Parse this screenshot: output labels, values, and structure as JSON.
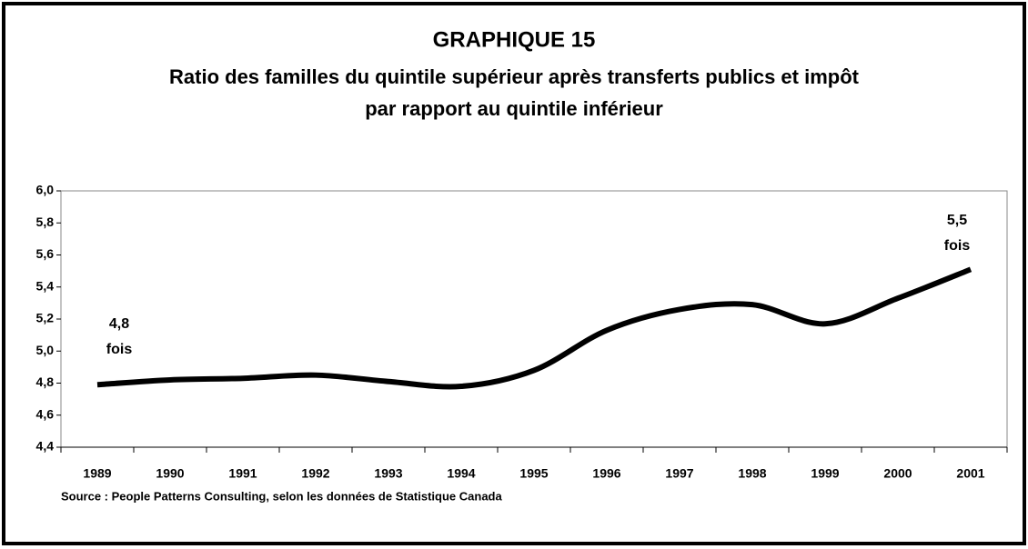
{
  "chart_data": {
    "type": "line",
    "title": "GRAPHIQUE 15",
    "subtitle": [
      "Ratio des familles du quintile supérieur après transferts publics et impôt",
      "par rapport au quintile inférieur"
    ],
    "categories": [
      "1989",
      "1990",
      "1991",
      "1992",
      "1993",
      "1994",
      "1995",
      "1996",
      "1997",
      "1998",
      "1999",
      "2000",
      "2001"
    ],
    "series": [
      {
        "color": "#000000",
        "values": [
          4.79,
          4.82,
          4.83,
          4.85,
          4.81,
          4.78,
          4.88,
          5.13,
          5.26,
          5.29,
          5.17,
          5.33,
          5.51
        ]
      }
    ],
    "ylim": [
      4.4,
      6.0
    ],
    "yticks": [
      {
        "value": 4.4,
        "label": "4,4"
      },
      {
        "value": 4.6,
        "label": "4,6"
      },
      {
        "value": 4.8,
        "label": "4,8"
      },
      {
        "value": 5.0,
        "label": "5,0"
      },
      {
        "value": 5.2,
        "label": "5,2"
      },
      {
        "value": 5.4,
        "label": "5,4"
      },
      {
        "value": 5.6,
        "label": "5,6"
      },
      {
        "value": 5.8,
        "label": "5,8"
      },
      {
        "value": 6.0,
        "label": "6,0"
      }
    ],
    "annotations": [
      {
        "lines": [
          "4,8",
          "fois"
        ]
      },
      {
        "lines": [
          "5,5",
          "fois"
        ]
      }
    ],
    "source": "Source : People Patterns Consulting, selon les données de Statistique Canada",
    "grid": false
  }
}
